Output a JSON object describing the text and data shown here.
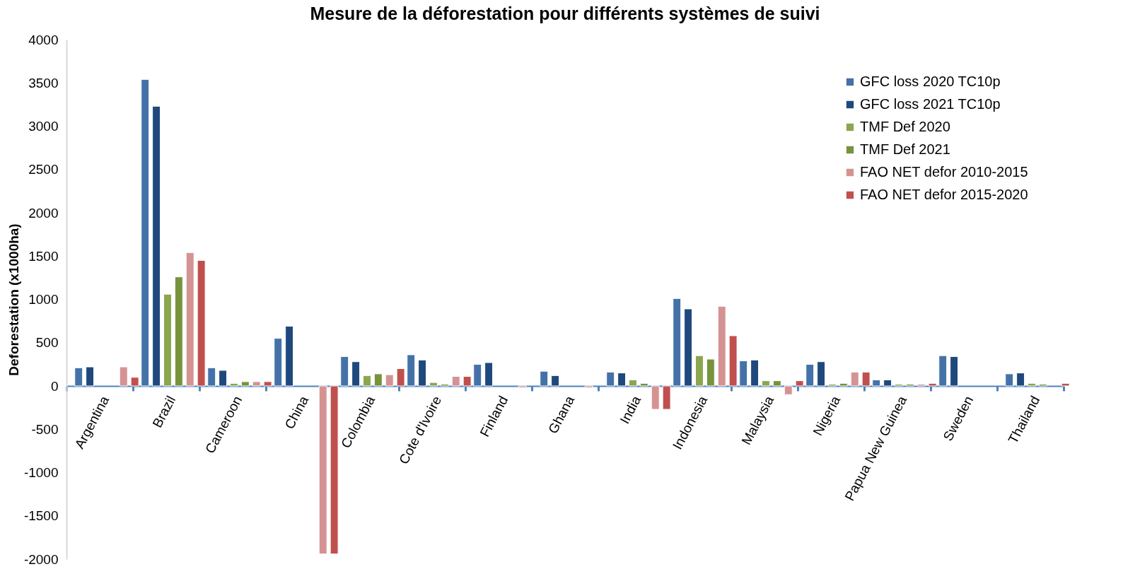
{
  "chart_data": {
    "type": "bar",
    "title": "Mesure de la déforestation pour différents systèmes de suivi",
    "ylabel": "Deforestation (x1000ha)",
    "categories": [
      "Argentina",
      "Brazil",
      "Cameroon",
      "China",
      "Colombia",
      "Cote d'Ivoire",
      "Finland",
      "Ghana",
      "India",
      "Indonesia",
      "Malaysia",
      "Nigeria",
      "Papua New Guinea",
      "Sweden",
      "Thailand"
    ],
    "series": [
      {
        "name": "GFC loss 2020 TC10p",
        "color": "#4472a8",
        "values": [
          210,
          3540,
          210,
          550,
          340,
          360,
          250,
          170,
          160,
          1010,
          290,
          250,
          70,
          350,
          140
        ]
      },
      {
        "name": "GFC loss 2021 TC10p",
        "color": "#1f497d",
        "values": [
          220,
          3230,
          180,
          690,
          280,
          300,
          270,
          120,
          150,
          890,
          300,
          280,
          70,
          340,
          150
        ]
      },
      {
        "name": "TMF Def 2020",
        "color": "#8ba64f",
        "values": [
          null,
          1060,
          30,
          null,
          120,
          40,
          null,
          null,
          70,
          350,
          60,
          20,
          20,
          null,
          30
        ]
      },
      {
        "name": "TMF Def 2021",
        "color": "#77933c",
        "values": [
          null,
          1260,
          50,
          null,
          140,
          20,
          null,
          null,
          30,
          310,
          60,
          30,
          20,
          null,
          20
        ]
      },
      {
        "name": "FAO NET defor 2010-2015",
        "color": "#d49392",
        "values": [
          220,
          1540,
          50,
          -1940,
          130,
          110,
          -20,
          -20,
          -270,
          920,
          -100,
          160,
          20,
          null,
          null
        ]
      },
      {
        "name": "FAO NET defor 2015-2020",
        "color": "#c0504d",
        "values": [
          100,
          1450,
          50,
          -1940,
          200,
          110,
          null,
          null,
          -270,
          580,
          60,
          160,
          30,
          null,
          30
        ]
      }
    ],
    "ylim": [
      -2000,
      4000
    ],
    "yticks": [
      -2000,
      -1500,
      -1000,
      -500,
      0,
      500,
      1000,
      1500,
      2000,
      2500,
      3000,
      3500,
      4000
    ],
    "grid": false,
    "legend": "top right"
  }
}
